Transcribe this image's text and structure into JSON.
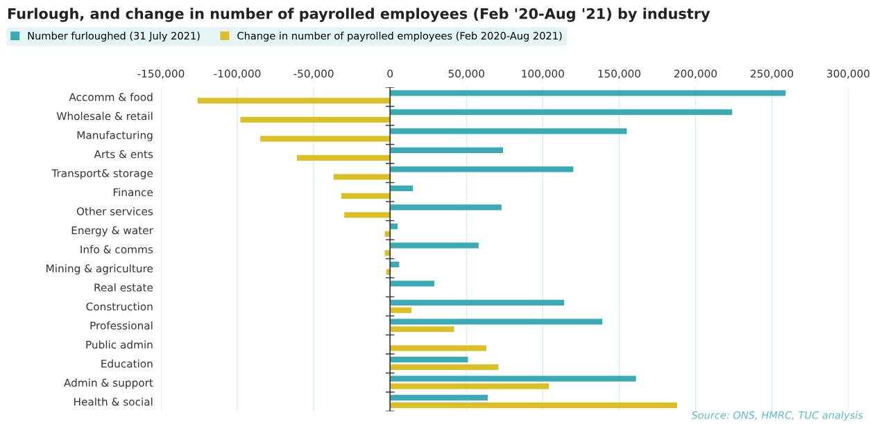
{
  "chart_data": {
    "type": "bar",
    "orientation": "horizontal",
    "title": "Furlough, and change in number of payrolled employees (Feb '20-Aug '21) by industry",
    "categories": [
      "Accomm & food",
      "Wholesale & retail",
      "Manufacturing",
      "Arts & ents",
      "Transport& storage",
      "Finance",
      "Other services",
      "Energy & water",
      "Info & comms",
      "Mining & agriculture",
      "Real estate",
      "Construction",
      "Professional",
      "Public admin",
      "Education",
      "Admin & support",
      "Health & social"
    ],
    "series": [
      {
        "name": "Number furloughed (31 July 2021)",
        "color": "#3aabb5",
        "values": [
          259000,
          224000,
          155000,
          74000,
          120000,
          15000,
          73000,
          5000,
          58000,
          6000,
          29000,
          114000,
          139000,
          null,
          51000,
          161000,
          64000
        ]
      },
      {
        "name": "Change in number of payrolled employees (Feb 2020-Aug 2021)",
        "color": "#dbc025",
        "values": [
          -126000,
          -98000,
          -85000,
          -61000,
          -37000,
          -32000,
          -30000,
          -3500,
          -3500,
          -2500,
          null,
          14000,
          42000,
          63000,
          71000,
          104000,
          188000
        ]
      }
    ],
    "xlim": [
      -150000,
      300000
    ],
    "xticks": [
      {
        "value": -150000,
        "label": "-150,000"
      },
      {
        "value": -100000,
        "label": "-100,000"
      },
      {
        "value": -50000,
        "label": "-50,000"
      },
      0,
      {
        "value": 50000,
        "label": "50,000"
      },
      {
        "value": 100000,
        "label": "100,000"
      },
      {
        "value": 150000,
        "label": "150,000"
      },
      {
        "value": 200000,
        "label": "200,000"
      },
      {
        "value": 250000,
        "label": "250,000"
      },
      {
        "value": 300000,
        "label": "300,000"
      }
    ],
    "grid": "x",
    "legend": "top left",
    "annotations": [
      "Source: ONS, HMRC, TUC analysis"
    ]
  }
}
